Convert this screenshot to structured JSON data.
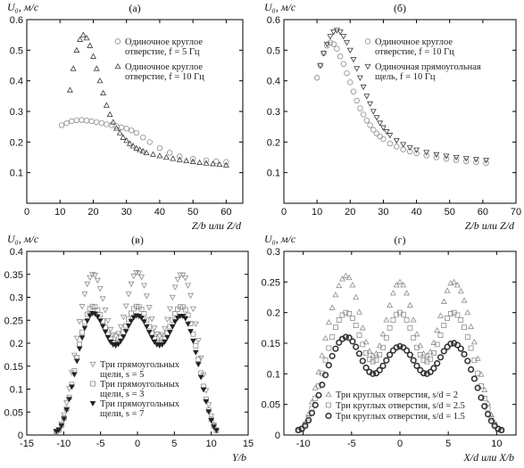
{
  "figure": {
    "title": ""
  },
  "chart_data": [
    {
      "id": "a",
      "type": "scatter",
      "panel_label": "(а)",
      "ylabel": "U₀,  м/с",
      "xlabel": "Z/b или Z/d",
      "xlim": [
        0,
        65
      ],
      "ylim": [
        0,
        0.6
      ],
      "xticks": [
        0,
        10,
        20,
        30,
        40,
        50,
        60
      ],
      "yticks": [
        0.1,
        0.2,
        0.3,
        0.4,
        0.5,
        0.6
      ],
      "grid": false,
      "legend_position": "top-right",
      "series": [
        {
          "name": "Одиночное круглое отверстие, f = 5 Гц",
          "legend_lines": [
            "Одиночное круглое",
            "отверстие, f = 5 Гц"
          ],
          "marker": "circle",
          "color": "#8c8c8c",
          "x": [
            10.5,
            12,
            13.5,
            15,
            16.5,
            18,
            19.5,
            21,
            22.5,
            24,
            25.5,
            27,
            28.5,
            30,
            31.5,
            33,
            35,
            37,
            40,
            43,
            46,
            50,
            54,
            57,
            60
          ],
          "y": [
            0.255,
            0.262,
            0.268,
            0.271,
            0.272,
            0.27,
            0.268,
            0.265,
            0.262,
            0.258,
            0.255,
            0.252,
            0.248,
            0.244,
            0.238,
            0.23,
            0.215,
            0.2,
            0.18,
            0.165,
            0.153,
            0.145,
            0.14,
            0.137,
            0.135
          ]
        },
        {
          "name": "Одиночное круглое отверстие, f = 10 Гц",
          "legend_lines": [
            "Одиночное круглое",
            "отверстие, f = 10 Гц"
          ],
          "marker": "triangle-up",
          "color": "#3a3a3a",
          "x": [
            13,
            14,
            15,
            16,
            17,
            18,
            19,
            20,
            21,
            22,
            23,
            24,
            25,
            26,
            27,
            28,
            29,
            30,
            31,
            32,
            33,
            34,
            35,
            36,
            38,
            40,
            42,
            44,
            46,
            48,
            50,
            52,
            54,
            56,
            58,
            60
          ],
          "y": [
            0.37,
            0.44,
            0.5,
            0.535,
            0.55,
            0.54,
            0.515,
            0.48,
            0.44,
            0.4,
            0.36,
            0.32,
            0.29,
            0.265,
            0.245,
            0.23,
            0.215,
            0.205,
            0.195,
            0.187,
            0.18,
            0.175,
            0.17,
            0.165,
            0.16,
            0.155,
            0.15,
            0.146,
            0.142,
            0.139,
            0.136,
            0.133,
            0.131,
            0.129,
            0.127,
            0.125
          ]
        }
      ]
    },
    {
      "id": "b",
      "type": "scatter",
      "panel_label": "(б)",
      "ylabel": "U₀,  м/с",
      "xlabel": "Z/b или Z/d",
      "xlim": [
        0,
        70
      ],
      "ylim": [
        0,
        0.6
      ],
      "xticks": [
        0,
        10,
        20,
        30,
        40,
        50,
        60,
        70
      ],
      "yticks": [
        0.1,
        0.2,
        0.3,
        0.4,
        0.5,
        0.6
      ],
      "grid": false,
      "legend_position": "top-right",
      "series": [
        {
          "name": "Одиночное круглое отверстие, f = 10 Гц",
          "legend_lines": [
            "Одиночное круглое",
            "отверстие, f = 10 Гц"
          ],
          "marker": "circle",
          "color": "#8c8c8c",
          "x": [
            10,
            11,
            12,
            13,
            14,
            15,
            16,
            17,
            18,
            19,
            20,
            21,
            22,
            23,
            24,
            25,
            26,
            27,
            28,
            29,
            30,
            32,
            34,
            36,
            38,
            40,
            43,
            46,
            49,
            52,
            55,
            58,
            61
          ],
          "y": [
            0.41,
            0.45,
            0.49,
            0.515,
            0.525,
            0.52,
            0.505,
            0.48,
            0.455,
            0.425,
            0.395,
            0.365,
            0.335,
            0.31,
            0.29,
            0.27,
            0.255,
            0.24,
            0.228,
            0.218,
            0.21,
            0.195,
            0.185,
            0.176,
            0.169,
            0.163,
            0.156,
            0.15,
            0.145,
            0.141,
            0.137,
            0.134,
            0.131
          ]
        },
        {
          "name": "Одиночная прямоугольная щель, f = 10 Гц",
          "legend_lines": [
            "Одиночная прямоугольная",
            "щель, f = 10 Гц"
          ],
          "marker": "triangle-down",
          "color": "#3a3a3a",
          "x": [
            11,
            12,
            13,
            14,
            15,
            16,
            17,
            18,
            19,
            20,
            21,
            22,
            23,
            24,
            25,
            26,
            27,
            28,
            29,
            30,
            31,
            32,
            34,
            36,
            38,
            40,
            43,
            46,
            49,
            52,
            55,
            58,
            61
          ],
          "y": [
            0.45,
            0.49,
            0.52,
            0.545,
            0.56,
            0.565,
            0.56,
            0.545,
            0.525,
            0.5,
            0.47,
            0.44,
            0.41,
            0.38,
            0.35,
            0.325,
            0.3,
            0.28,
            0.262,
            0.247,
            0.234,
            0.222,
            0.205,
            0.192,
            0.182,
            0.174,
            0.166,
            0.159,
            0.154,
            0.15,
            0.146,
            0.143,
            0.14
          ]
        }
      ]
    },
    {
      "id": "c",
      "type": "scatter",
      "panel_label": "(в)",
      "ylabel": "U₀,  м/с",
      "xlabel": "Y/b",
      "xlim": [
        -15,
        15
      ],
      "ylim": [
        0,
        0.4
      ],
      "xticks": [
        -15,
        -10,
        -5,
        0,
        5,
        10,
        15
      ],
      "yticks": [
        0,
        0.05,
        0.1,
        0.15,
        0.2,
        0.25,
        0.3,
        0.35,
        0.4
      ],
      "grid": false,
      "legend_position": "bottom-left",
      "series": [
        {
          "name": "Три прямоугольных щели, s = 5",
          "legend_lines": [
            "Три прямоугольных",
            "щели, s = 5"
          ],
          "marker": "triangle-down",
          "color": "#8c8c8c",
          "profile": {
            "peaks": [
              0.35,
              0.355,
              0.35
            ],
            "troughs": [
              0.215,
              0.215
            ],
            "peak_x": [
              -6,
              0,
              6
            ],
            "edge": 11
          }
        },
        {
          "name": "Три прямоугольных щели, s = 3",
          "legend_lines": [
            "Три прямоугольных",
            "щели, s = 3"
          ],
          "marker": "square",
          "color": "#8c8c8c",
          "profile": {
            "peaks": [
              0.28,
              0.28,
              0.28
            ],
            "troughs": [
              0.2,
              0.2
            ],
            "peak_x": [
              -6,
              0,
              6
            ],
            "edge": 11
          }
        },
        {
          "name": "Три прямоугольных щели, s = 7",
          "legend_lines": [
            "Три прямоугольных",
            "щели, s = 7"
          ],
          "marker": "triangle-down-filled",
          "color": "#222222",
          "profile": {
            "peaks": [
              0.265,
              0.26,
              0.26
            ],
            "troughs": [
              0.195,
              0.195
            ],
            "peak_x": [
              -6,
              0,
              6
            ],
            "edge": 11
          }
        }
      ]
    },
    {
      "id": "d",
      "type": "scatter",
      "panel_label": "(г)",
      "ylabel": "U₀,  м/с",
      "xlabel": "X/d или X/b",
      "xlim": [
        -12,
        12
      ],
      "ylim": [
        0,
        0.3
      ],
      "xticks": [
        -10,
        -5,
        0,
        5,
        10
      ],
      "yticks": [
        0,
        0.05,
        0.1,
        0.15,
        0.2,
        0.25,
        0.3
      ],
      "grid": false,
      "legend_position": "bottom-center",
      "series": [
        {
          "name": "Три круглых отверстия, s/d = 2",
          "legend_lines": [
            "Три круглых отверстия, s/d = 2"
          ],
          "marker": "triangle-up",
          "color": "#8c8c8c",
          "profile": {
            "peaks": [
              0.26,
              0.25,
              0.25
            ],
            "troughs": [
              0.13,
              0.13
            ],
            "peak_x": [
              -5.5,
              0,
              5.5
            ],
            "edge": 10.5
          }
        },
        {
          "name": "Три круглых отверстия, s/d = 2.5",
          "legend_lines": [
            "Три круглых отверстия, s/d = 2.5"
          ],
          "marker": "square",
          "color": "#8c8c8c",
          "profile": {
            "peaks": [
              0.2,
              0.2,
              0.2
            ],
            "troughs": [
              0.12,
              0.12
            ],
            "peak_x": [
              -5.5,
              0,
              5.5
            ],
            "edge": 10.5
          }
        },
        {
          "name": "Три круглых отверстия, s/d = 1.5",
          "legend_lines": [
            "Три круглых отверстия, s/d = 1.5"
          ],
          "marker": "circle-thick",
          "color": "#333333",
          "profile": {
            "peaks": [
              0.16,
              0.145,
              0.15
            ],
            "troughs": [
              0.1,
              0.1
            ],
            "peak_x": [
              -5.5,
              0,
              5.5
            ],
            "edge": 10.5
          }
        }
      ]
    }
  ]
}
